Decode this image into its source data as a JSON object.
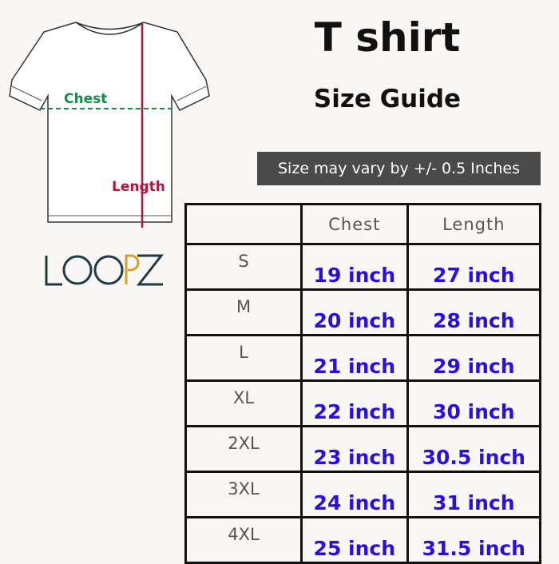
{
  "title": "T shirt",
  "subtitle": "Size Guide",
  "note": "Size may vary by +/- 0.5 Inches",
  "diagram": {
    "chest_label": "Chest",
    "length_label": "Length",
    "chest_color": "#1a8a4a",
    "length_color": "#b0173a"
  },
  "logo": {
    "text": "LOOPZ",
    "dark": "#1f3a44",
    "accent": "#d4a22a"
  },
  "table": {
    "headers": [
      "",
      "Chest",
      "Length"
    ],
    "rows": [
      {
        "size": "S",
        "chest": "19 inch",
        "length": "27 inch"
      },
      {
        "size": "M",
        "chest": "20 inch",
        "length": "28 inch"
      },
      {
        "size": "L",
        "chest": "21 inch",
        "length": "29 inch"
      },
      {
        "size": "XL",
        "chest": "22 inch",
        "length": "30 inch"
      },
      {
        "size": "2XL",
        "chest": "23 inch",
        "length": "30.5 inch"
      },
      {
        "size": "3XL",
        "chest": "24 inch",
        "length": "31 inch"
      },
      {
        "size": "4XL",
        "chest": "25 inch",
        "length": "31.5 inch"
      }
    ]
  }
}
